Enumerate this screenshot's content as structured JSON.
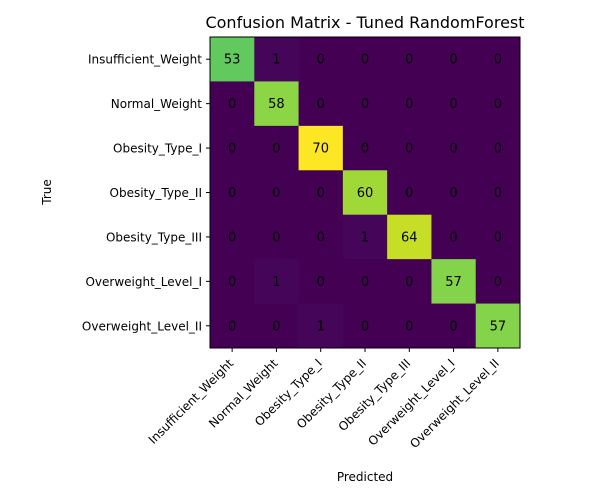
{
  "chart_data": {
    "type": "heatmap",
    "title": "Confusion Matrix - Tuned RandomForest",
    "xlabel": "Predicted",
    "ylabel": "True",
    "colormap": "viridis",
    "vmin": 0,
    "vmax": 70,
    "x_categories": [
      "Insufficient_Weight",
      "Normal_Weight",
      "Obesity_Type_I",
      "Obesity_Type_II",
      "Obesity_Type_III",
      "Overweight_Level_I",
      "Overweight_Level_II"
    ],
    "y_categories": [
      "Insufficient_Weight",
      "Normal_Weight",
      "Obesity_Type_I",
      "Obesity_Type_II",
      "Obesity_Type_III",
      "Overweight_Level_I",
      "Overweight_Level_II"
    ],
    "values": [
      [
        53,
        1,
        0,
        0,
        0,
        0,
        0
      ],
      [
        0,
        58,
        0,
        0,
        0,
        0,
        0
      ],
      [
        0,
        0,
        70,
        0,
        0,
        0,
        0
      ],
      [
        0,
        0,
        0,
        60,
        0,
        0,
        0
      ],
      [
        0,
        0,
        0,
        1,
        64,
        0,
        0
      ],
      [
        0,
        1,
        0,
        0,
        0,
        57,
        0
      ],
      [
        0,
        0,
        1,
        0,
        0,
        0,
        57
      ]
    ],
    "grid": false,
    "legend": "none",
    "annotation_text_color": "#000000"
  }
}
